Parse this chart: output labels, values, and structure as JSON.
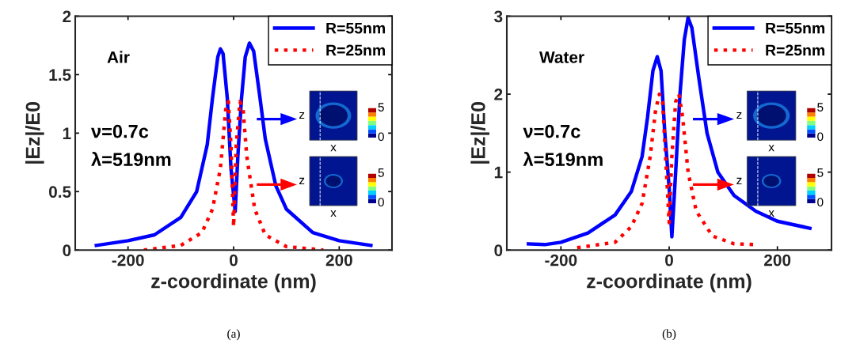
{
  "chart_data": [
    {
      "type": "line",
      "xlabel": "z-coordinate (nm)",
      "ylabel": "|Ez|/E0",
      "xlim": [
        -300,
        300
      ],
      "xticks": [
        -200,
        0,
        200
      ],
      "ylim": [
        0,
        2
      ],
      "yticks": [
        0,
        0.5,
        1,
        1.5,
        2
      ],
      "grid": false,
      "legend": "top right",
      "annotations": [
        "Air",
        "ν=0.7c",
        "λ=519nm",
        "z",
        "x",
        "5",
        "0",
        "z",
        "x",
        "5",
        "0",
        "(a)"
      ],
      "series": [
        {
          "name": "R=55nm",
          "color": "#0000ff",
          "line_style": "solid",
          "x": [
            -260,
            -200,
            -150,
            -100,
            -70,
            -50,
            -40,
            -30,
            -25,
            -20,
            -12,
            -5,
            3,
            8,
            15,
            22,
            30,
            38,
            50,
            60,
            80,
            100,
            150,
            200,
            260
          ],
          "values": [
            0.04,
            0.08,
            0.13,
            0.28,
            0.5,
            0.9,
            1.3,
            1.65,
            1.72,
            1.68,
            1.3,
            0.7,
            0.33,
            0.8,
            1.3,
            1.65,
            1.77,
            1.7,
            1.3,
            0.95,
            0.55,
            0.35,
            0.15,
            0.08,
            0.04
          ]
        },
        {
          "name": "R=25nm",
          "color": "#ff0000",
          "line_style": "dotted",
          "x": [
            -170,
            -100,
            -60,
            -40,
            -25,
            -15,
            -10,
            -5,
            0,
            5,
            12,
            18,
            25,
            40,
            60,
            100,
            170
          ],
          "values": [
            0.0,
            0.04,
            0.15,
            0.35,
            0.7,
            1.2,
            1.27,
            0.9,
            0.2,
            0.9,
            1.27,
            1.2,
            0.8,
            0.35,
            0.13,
            0.03,
            0.0
          ]
        }
      ]
    },
    {
      "type": "line",
      "xlabel": "z-coordinate (nm)",
      "ylabel": "|Ez|/E0",
      "xlim": [
        -300,
        300
      ],
      "xticks": [
        -200,
        0,
        200
      ],
      "ylim": [
        0,
        3
      ],
      "yticks": [
        0,
        1,
        2,
        3
      ],
      "grid": false,
      "legend": "top right",
      "annotations": [
        "Water",
        "ν=0.7c",
        "λ=519nm",
        "z",
        "x",
        "5",
        "0",
        "z",
        "x",
        "5",
        "0",
        "(b)"
      ],
      "series": [
        {
          "name": "R=55nm",
          "color": "#0000ff",
          "line_style": "solid",
          "x": [
            -260,
            -230,
            -200,
            -150,
            -100,
            -70,
            -50,
            -40,
            -30,
            -22,
            -15,
            -8,
            0,
            5,
            12,
            20,
            28,
            35,
            42,
            55,
            70,
            90,
            120,
            160,
            200,
            260
          ],
          "values": [
            0.08,
            0.07,
            0.1,
            0.22,
            0.45,
            0.75,
            1.2,
            1.7,
            2.3,
            2.48,
            2.3,
            1.5,
            0.8,
            0.17,
            1.0,
            2.0,
            2.7,
            2.98,
            2.85,
            2.2,
            1.5,
            1.0,
            0.7,
            0.5,
            0.37,
            0.28
          ]
        },
        {
          "name": "R=25nm",
          "color": "#ff0000",
          "line_style": "dotted",
          "x": [
            -170,
            -100,
            -70,
            -50,
            -35,
            -25,
            -18,
            -12,
            -5,
            0,
            5,
            12,
            18,
            25,
            35,
            50,
            80,
            120,
            160
          ],
          "values": [
            0.03,
            0.1,
            0.3,
            0.6,
            1.2,
            1.8,
            2.0,
            1.9,
            1.0,
            0.35,
            1.2,
            1.9,
            2.0,
            1.7,
            1.0,
            0.5,
            0.18,
            0.08,
            0.07
          ]
        }
      ]
    }
  ]
}
